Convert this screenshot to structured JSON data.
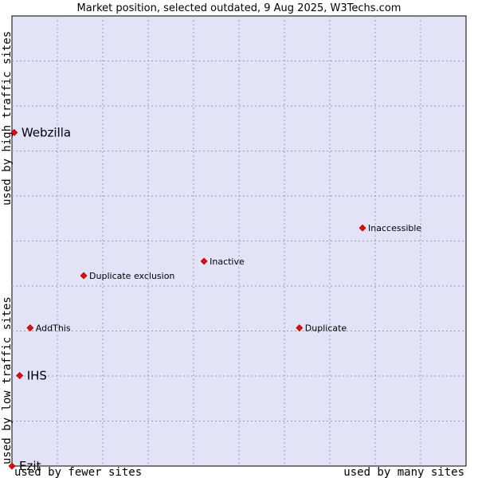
{
  "chart_data": {
    "type": "scatter",
    "title": "Market position, selected outdated, 9 Aug 2025, W3Techs.com",
    "xlabel_left": "used by fewer sites",
    "xlabel_right": "used by many sites",
    "ylabel_bottom": "used by low traffic sites",
    "ylabel_top": "used by high traffic sites",
    "xlim": [
      0,
      100
    ],
    "ylim": [
      0,
      100
    ],
    "grid": true,
    "plot_background": "#e3e3f8",
    "marker_color": "#ff0000",
    "points": [
      {
        "label": "Webzilla",
        "x": 0.5,
        "y": 74.1,
        "emphasis": true
      },
      {
        "label": "Inaccessible",
        "x": 77.2,
        "y": 52.9,
        "emphasis": false
      },
      {
        "label": "Inactive",
        "x": 42.3,
        "y": 45.5,
        "emphasis": false
      },
      {
        "label": "Duplicate exclusion",
        "x": 15.8,
        "y": 42.3,
        "emphasis": false
      },
      {
        "label": "AddThis",
        "x": 4.0,
        "y": 30.7,
        "emphasis": false
      },
      {
        "label": "Duplicate",
        "x": 63.3,
        "y": 30.7,
        "emphasis": false
      },
      {
        "label": "IHS",
        "x": 1.7,
        "y": 20.1,
        "emphasis": true
      },
      {
        "label": "Ezit",
        "x": 0.0,
        "y": 0.0,
        "emphasis": true
      }
    ]
  }
}
